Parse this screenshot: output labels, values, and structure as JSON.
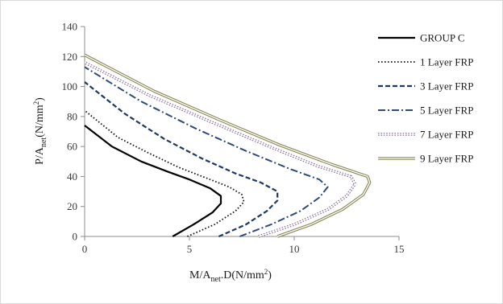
{
  "chart_data": {
    "type": "line",
    "title": "",
    "xlabel": {
      "pre": "M/A",
      "sub": "net",
      "post": ".D(N/mm",
      "sup": "2",
      "end": ")"
    },
    "ylabel": {
      "pre": "P/A",
      "sub": "net",
      "post": "(N/mm",
      "sup": "2",
      "end": ")"
    },
    "xlim": [
      0,
      15
    ],
    "ylim": [
      0,
      140
    ],
    "xticks": [
      0,
      5,
      10,
      15
    ],
    "yticks": [
      0,
      20,
      40,
      60,
      80,
      100,
      120,
      140
    ],
    "grid": false,
    "legend_position": "right",
    "series": [
      {
        "name": "GROUP C",
        "style": "solid",
        "color": "#000000",
        "points": [
          [
            4.2,
            0
          ],
          [
            5.2,
            8
          ],
          [
            6.1,
            16
          ],
          [
            6.5,
            22
          ],
          [
            6.5,
            27
          ],
          [
            6.0,
            32
          ],
          [
            5.0,
            38
          ],
          [
            4.0,
            43
          ],
          [
            2.7,
            50
          ],
          [
            1.3,
            60
          ],
          [
            0,
            74
          ]
        ]
      },
      {
        "name": "1 Layer FRP",
        "style": "dotted",
        "color": "#1a1a1a",
        "points": [
          [
            4.9,
            0
          ],
          [
            6.2,
            8
          ],
          [
            7.2,
            17
          ],
          [
            7.6,
            23
          ],
          [
            7.5,
            28
          ],
          [
            6.9,
            33
          ],
          [
            5.8,
            39
          ],
          [
            4.5,
            46
          ],
          [
            3.0,
            56
          ],
          [
            1.6,
            66
          ],
          [
            0,
            84
          ]
        ]
      },
      {
        "name": "3 Layer FRP",
        "style": "dashed",
        "color": "#1f3864",
        "points": [
          [
            6.4,
            0
          ],
          [
            7.7,
            8
          ],
          [
            8.7,
            17
          ],
          [
            9.2,
            24
          ],
          [
            9.2,
            30
          ],
          [
            8.4,
            36
          ],
          [
            7.2,
            42
          ],
          [
            5.6,
            52
          ],
          [
            3.8,
            65
          ],
          [
            1.9,
            82
          ],
          [
            0,
            103
          ]
        ]
      },
      {
        "name": "5 Layer FRP",
        "style": "dashdot",
        "color": "#2e4a7a",
        "points": [
          [
            7.4,
            0
          ],
          [
            8.9,
            8
          ],
          [
            10.3,
            17
          ],
          [
            11.2,
            26
          ],
          [
            11.6,
            33
          ],
          [
            11.2,
            38
          ],
          [
            9.8,
            45
          ],
          [
            7.7,
            57
          ],
          [
            5.3,
            72
          ],
          [
            2.7,
            90
          ],
          [
            0,
            113
          ]
        ]
      },
      {
        "name": "7 Layer FRP",
        "style": "dotted-double",
        "color": "#8064a2",
        "points": [
          [
            8.3,
            0
          ],
          [
            10.0,
            8
          ],
          [
            11.6,
            18
          ],
          [
            12.5,
            27
          ],
          [
            12.9,
            35
          ],
          [
            12.7,
            40
          ],
          [
            11.1,
            47
          ],
          [
            8.8,
            60
          ],
          [
            6.1,
            76
          ],
          [
            3.1,
            94
          ],
          [
            0,
            116
          ]
        ]
      },
      {
        "name": "9 Layer FRP",
        "style": "double",
        "color": "#8c8c5a",
        "points": [
          [
            9.2,
            0
          ],
          [
            10.8,
            8
          ],
          [
            12.3,
            18
          ],
          [
            13.3,
            28
          ],
          [
            13.6,
            36
          ],
          [
            13.5,
            40
          ],
          [
            11.8,
            48
          ],
          [
            9.3,
            61
          ],
          [
            6.4,
            78
          ],
          [
            3.3,
            97
          ],
          [
            0,
            121
          ]
        ]
      }
    ]
  }
}
